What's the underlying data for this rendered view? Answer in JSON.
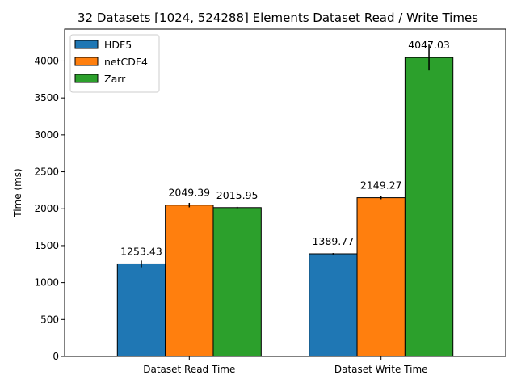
{
  "chart_data": {
    "type": "bar",
    "title": "32 Datasets [1024, 524288] Elements Dataset Read / Write Times",
    "xlabel": "",
    "ylabel": "Time (ms)",
    "categories": [
      "Dataset Read Time",
      "Dataset Write Time"
    ],
    "ylim": [
      0,
      4432
    ],
    "yticks": [
      0,
      500,
      1000,
      1500,
      2000,
      2500,
      3000,
      3500,
      4000
    ],
    "legend_position": "top-left",
    "grid": false,
    "series": [
      {
        "name": "HDF5",
        "color": "#1f77b4",
        "values": [
          1253.43,
          1389.77
        ],
        "errors": [
          45,
          10
        ],
        "labels": [
          "1253.43",
          "1389.77"
        ]
      },
      {
        "name": "netCDF4",
        "color": "#ff7f0e",
        "values": [
          2049.39,
          2149.27
        ],
        "errors": [
          30,
          20
        ],
        "labels": [
          "2049.39",
          "2149.27"
        ]
      },
      {
        "name": "Zarr",
        "color": "#2ca02c",
        "values": [
          2015.95,
          4047.03
        ],
        "errors": [
          10,
          175
        ],
        "labels": [
          "2015.95",
          "4047.03"
        ]
      }
    ]
  }
}
